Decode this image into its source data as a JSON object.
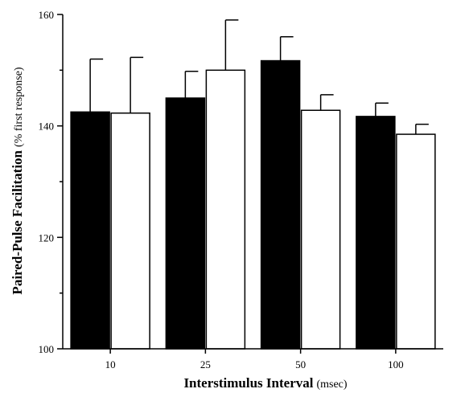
{
  "chart_data": {
    "type": "bar",
    "title": "",
    "xlabel_main": "Interstimulus Interval",
    "xlabel_unit": "(msec)",
    "ylabel_main": "Paired-Pulse Facilitation",
    "ylabel_unit": "(% first response)",
    "categories": [
      "10",
      "25",
      "50",
      "100"
    ],
    "ylim": [
      100,
      160
    ],
    "yticks": [
      100,
      120,
      140,
      160
    ],
    "series": [
      {
        "color": "#000000",
        "values": [
          142.5,
          145,
          151.7,
          141.7
        ],
        "errors": [
          9.5,
          4.8,
          4.3,
          2.4
        ]
      },
      {
        "color": "#ffffff",
        "values": [
          142.3,
          150,
          142.8,
          138.5
        ],
        "errors": [
          10,
          9,
          2.8,
          1.8
        ]
      }
    ]
  }
}
